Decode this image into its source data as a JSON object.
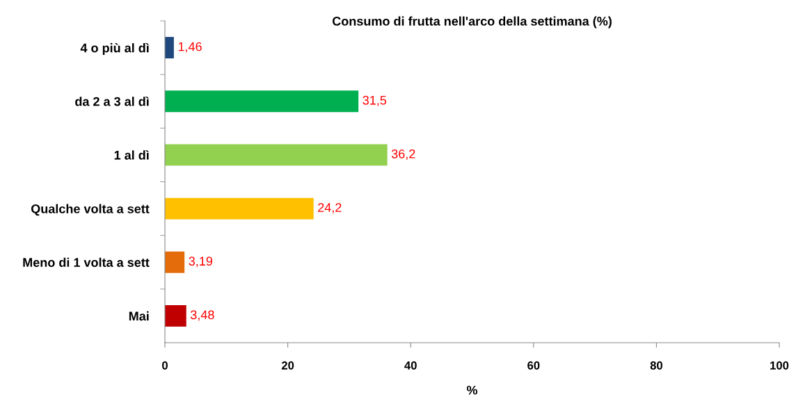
{
  "chart_data": {
    "type": "bar",
    "orientation": "horizontal",
    "title": "Consumo di frutta nell'arco della settimana (%)",
    "xlabel": "%",
    "categories": [
      "4 o più al dì",
      "da 2 a 3 al dì",
      "1 al dì",
      "Qualche volta a sett",
      "Meno di 1 volta a sett",
      "Mai"
    ],
    "values": [
      1.46,
      31.5,
      36.2,
      24.2,
      3.19,
      3.48
    ],
    "colors": [
      "#1f497d",
      "#00b050",
      "#92d050",
      "#ffc000",
      "#e46c0a",
      "#c00000"
    ],
    "value_labels": [
      "1,46",
      "31,5",
      "36,2",
      "24,2",
      "3,19",
      "3,48"
    ],
    "xlim": [
      0,
      100
    ],
    "xticks": [
      0,
      20,
      40,
      60,
      80,
      100
    ],
    "grid": false,
    "legend": false
  }
}
